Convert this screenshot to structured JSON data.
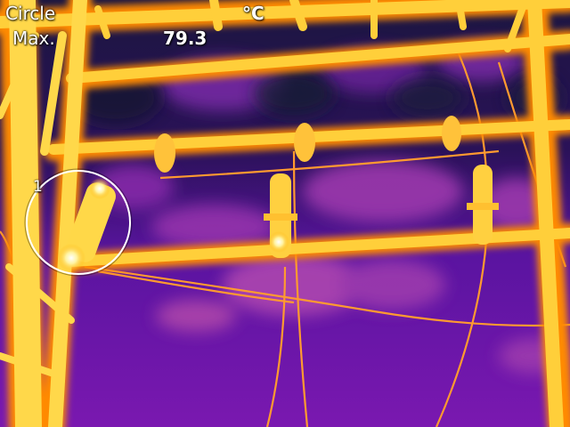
{
  "overlay": {
    "mode": "Circle",
    "stat": "Max.",
    "value": "79.3",
    "unit": "°C",
    "marker_index": "1"
  },
  "palette": {
    "cold": "#1a1a3a",
    "cool": "#3a0a6e",
    "mid": "#9a1fb0",
    "warm": "#e85a2a",
    "hot": "#ffb000",
    "hottest": "#fff6a0"
  }
}
